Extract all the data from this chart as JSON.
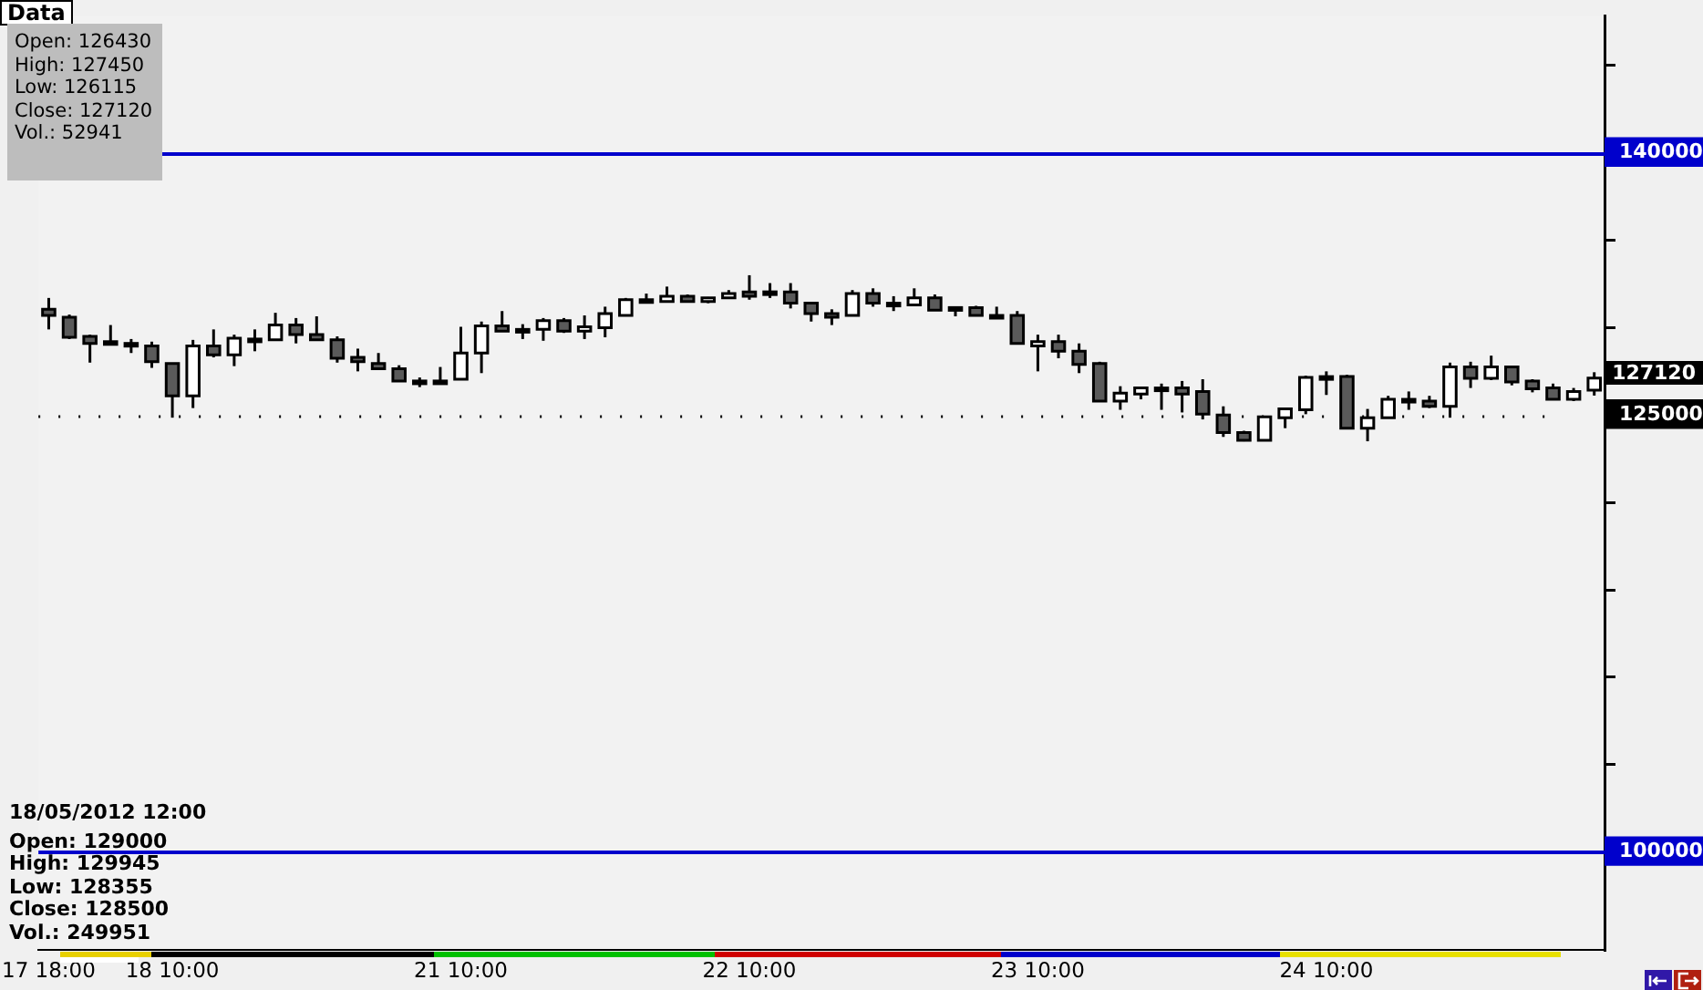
{
  "chart_data": {
    "type": "candlestick",
    "categories": [
      "17 18:00",
      null,
      null,
      null,
      null,
      null,
      "18 10:00",
      null,
      null,
      null,
      null,
      null,
      null,
      null,
      null,
      null,
      null,
      null,
      null,
      null,
      "21 10:00",
      null,
      null,
      null,
      null,
      null,
      null,
      null,
      null,
      null,
      null,
      null,
      null,
      null,
      "22 10:00",
      null,
      null,
      null,
      null,
      null,
      null,
      null,
      null,
      null,
      null,
      null,
      null,
      null,
      "23 10:00",
      null,
      null,
      null,
      null,
      null,
      null,
      null,
      null,
      null,
      null,
      null,
      null,
      null,
      "24 10:00",
      null,
      null,
      null,
      null,
      null,
      null,
      null,
      null,
      null,
      null,
      null,
      null,
      null
    ],
    "ohlc": [
      [
        131050,
        131700,
        129900,
        130700
      ],
      [
        130600,
        130750,
        129350,
        129450
      ],
      [
        129500,
        129600,
        128000,
        129100
      ],
      [
        129200,
        130150,
        129100,
        129100
      ],
      [
        129100,
        129350,
        128550,
        129000
      ],
      [
        128950,
        129200,
        127700,
        128050
      ],
      [
        127950,
        127950,
        124850,
        126100
      ],
      [
        126100,
        129300,
        125400,
        128950
      ],
      [
        128950,
        129900,
        128300,
        128450
      ],
      [
        128450,
        129600,
        127800,
        129400
      ],
      [
        129350,
        129900,
        128650,
        129300
      ],
      [
        129300,
        130850,
        129300,
        130150
      ],
      [
        130150,
        130550,
        129100,
        129600
      ],
      [
        129600,
        130650,
        129300,
        129300
      ],
      [
        129300,
        129500,
        128000,
        128250
      ],
      [
        128300,
        128800,
        127500,
        128050
      ],
      [
        127950,
        128550,
        127650,
        127650
      ],
      [
        127650,
        127850,
        126950,
        126950
      ],
      [
        126950,
        127150,
        126600,
        126900
      ],
      [
        126900,
        127750,
        126750,
        126950
      ],
      [
        127050,
        130050,
        127050,
        128550
      ],
      [
        128550,
        130350,
        127400,
        130100
      ],
      [
        130100,
        130950,
        129800,
        129800
      ],
      [
        129900,
        130200,
        129350,
        129800
      ],
      [
        129900,
        130550,
        129250,
        130400
      ],
      [
        130400,
        130550,
        129700,
        129800
      ],
      [
        129800,
        130700,
        129350,
        130050
      ],
      [
        130000,
        131200,
        129450,
        130800
      ],
      [
        130700,
        131700,
        130700,
        131600
      ],
      [
        131600,
        131950,
        131500,
        131500
      ],
      [
        131500,
        132350,
        131500,
        131800
      ],
      [
        131800,
        131900,
        131500,
        131500
      ],
      [
        131500,
        131750,
        131400,
        131700
      ],
      [
        131700,
        132150,
        131700,
        131950
      ],
      [
        132050,
        133000,
        131600,
        131800
      ],
      [
        132050,
        132550,
        131700,
        131950
      ],
      [
        132050,
        132550,
        131100,
        131400
      ],
      [
        131400,
        131400,
        130350,
        130800
      ],
      [
        130800,
        131050,
        130150,
        130600
      ],
      [
        130700,
        132150,
        130700,
        131950
      ],
      [
        131950,
        132250,
        131200,
        131400
      ],
      [
        131400,
        131800,
        130950,
        131350
      ],
      [
        131300,
        132250,
        131300,
        131700
      ],
      [
        131700,
        131900,
        131000,
        131000
      ],
      [
        131150,
        131150,
        130650,
        131000
      ],
      [
        131150,
        131250,
        130700,
        130700
      ],
      [
        130700,
        131200,
        130650,
        130650
      ],
      [
        130700,
        130950,
        129100,
        129100
      ],
      [
        128950,
        129600,
        127500,
        129200
      ],
      [
        129200,
        129600,
        128250,
        128650
      ],
      [
        128650,
        129100,
        127400,
        127900
      ],
      [
        127950,
        128050,
        125800,
        125800
      ],
      [
        125800,
        126650,
        125300,
        126250
      ],
      [
        126200,
        126550,
        125900,
        126550
      ],
      [
        126550,
        126800,
        125300,
        126500
      ],
      [
        126550,
        126950,
        125150,
        126200
      ],
      [
        126350,
        127050,
        124750,
        125050
      ],
      [
        125000,
        125500,
        123750,
        124000
      ],
      [
        124000,
        124100,
        123500,
        123550
      ],
      [
        123550,
        124950,
        123550,
        124900
      ],
      [
        124850,
        125350,
        124250,
        125350
      ],
      [
        125300,
        127250,
        125050,
        127150
      ],
      [
        127100,
        127500,
        126150,
        127200
      ],
      [
        127200,
        127300,
        124250,
        124250
      ],
      [
        124250,
        125350,
        123500,
        124850
      ],
      [
        124850,
        126100,
        124850,
        125900
      ],
      [
        125900,
        126350,
        125300,
        125800
      ],
      [
        125800,
        126100,
        125400,
        125500
      ],
      [
        125500,
        128000,
        124850,
        127750
      ],
      [
        127750,
        128050,
        126550,
        127100
      ],
      [
        127100,
        128400,
        127000,
        127750
      ],
      [
        127750,
        127750,
        126700,
        126900
      ],
      [
        126950,
        127050,
        126300,
        126500
      ],
      [
        126550,
        126800,
        125900,
        125900
      ],
      [
        125900,
        126550,
        125800,
        126350
      ],
      [
        126430,
        127450,
        126115,
        127120
      ]
    ],
    "colors": [
      "#5a5a5a",
      "#5a5a5a",
      "#5a5a5a",
      "#5a5a5a",
      "#5a5a5a",
      "#5a5a5a",
      "#5a5a5a",
      "#ffffff",
      "#5a5a5a",
      "#ffffff",
      "#5a5a5a",
      "#ffffff",
      "#5a5a5a",
      "#5a5a5a",
      "#5a5a5a",
      "#5a5a5a",
      "#5a5a5a",
      "#5a5a5a",
      "#5a5a5a",
      "#ffffff",
      "#ffffff",
      "#ffffff",
      "#5a5a5a",
      "#5a5a5a",
      "#ffffff",
      "#5a5a5a",
      "#ffffff",
      "#ffffff",
      "#ffffff",
      "#5a5a5a",
      "#ffffff",
      "#5a5a5a",
      "#ffffff",
      "#ffffff",
      "#5a5a5a",
      "#5a5a5a",
      "#5a5a5a",
      "#5a5a5a",
      "#5a5a5a",
      "#ffffff",
      "#5a5a5a",
      "#5a5a5a",
      "#ffffff",
      "#5a5a5a",
      "#5a5a5a",
      "#5a5a5a",
      "#5a5a5a",
      "#5a5a5a",
      "#ffffff",
      "#5a5a5a",
      "#5a5a5a",
      "#5a5a5a",
      "#ffffff",
      "#ffffff",
      "#5a5a5a",
      "#5a5a5a",
      "#5a5a5a",
      "#5a5a5a",
      "#5a5a5a",
      "#ffffff",
      "#ffffff",
      "#ffffff",
      "#ffffff",
      "#5a5a5a",
      "#ffffff",
      "#ffffff",
      "#5a5a5a",
      "#5a5a5a",
      "#ffffff",
      "#5a5a5a",
      "#ffffff",
      "#5a5a5a",
      "#5a5a5a",
      "#5a5a5a",
      "#ffffff",
      "#ffffff"
    ],
    "ylim": [
      94400,
      147850
    ],
    "yticks": [
      100000,
      {
        "value": 105000,
        "label": null
      },
      {
        "value": 110000,
        "label": null
      },
      {
        "value": 115000,
        "label": null
      },
      {
        "value": 120000,
        "label": null
      },
      125000,
      {
        "value": 130000,
        "label": null
      },
      {
        "value": 135000,
        "label": null
      },
      140000,
      {
        "value": 145000,
        "label": null
      }
    ],
    "ref_lines": [
      {
        "axis": "y",
        "value": 140000,
        "label": null,
        "color": "#0000cc",
        "line_style": "solid"
      },
      {
        "axis": "y",
        "value": 100000,
        "label": null,
        "color": "#0000cc",
        "line_style": "solid"
      },
      {
        "axis": "y",
        "value": 125000,
        "label": null,
        "color": "#000000",
        "line_style": "dotted"
      }
    ],
    "annotations": [
      "Data",
      "Open: 126430\nHigh: 127450\nLow: 126115\nClose: 127120\nVol.: 52941",
      "18/05/2012 12:00",
      "Open: 129000\nHigh: 129945\nLow: 128355\nClose: 128500\nVol.: 249951",
      "127120"
    ],
    "legend": false,
    "grid": false
  }
}
